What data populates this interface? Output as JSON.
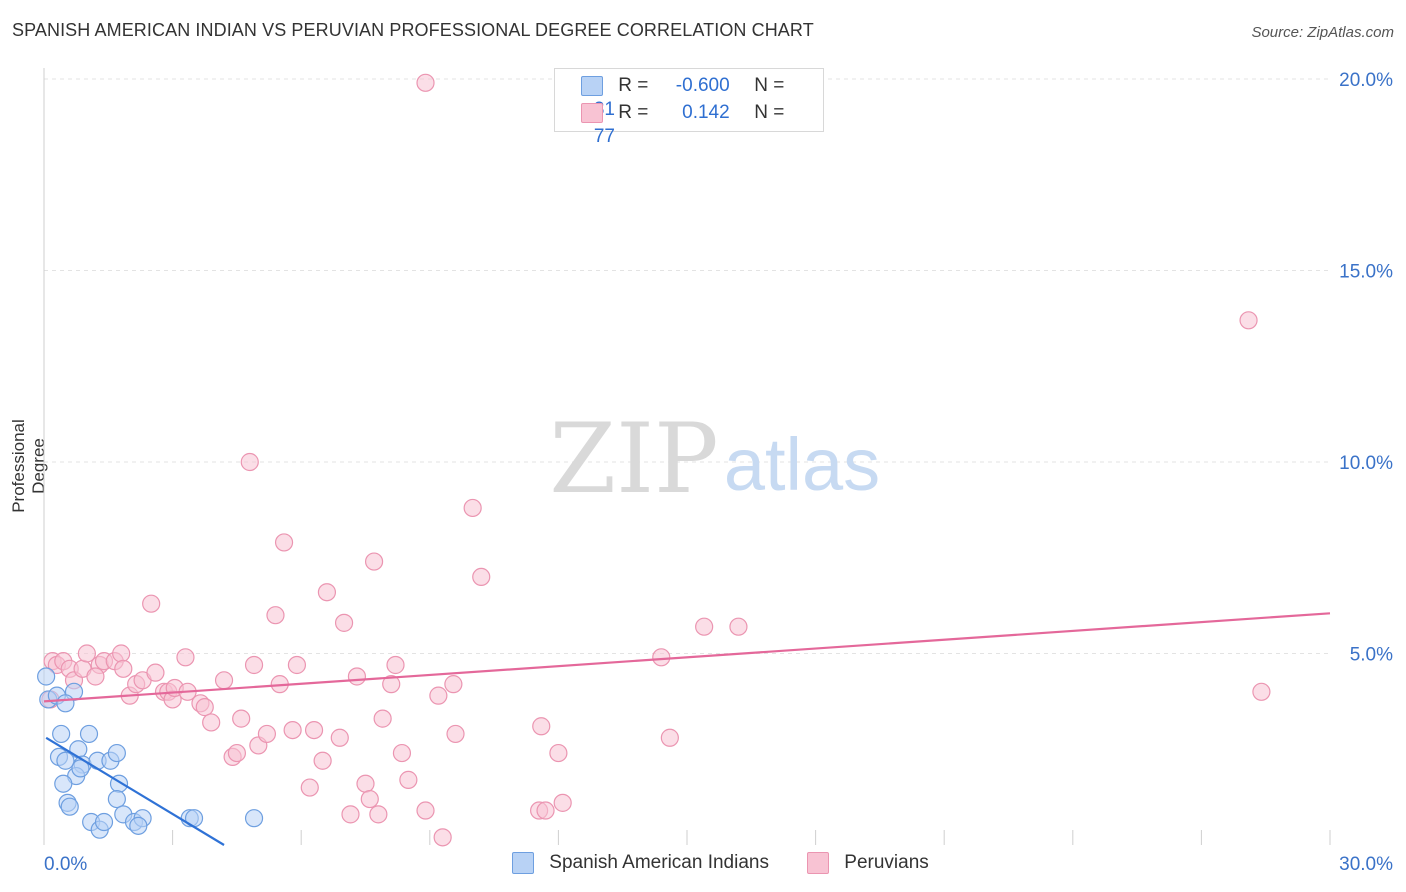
{
  "header": {
    "title": "SPANISH AMERICAN INDIAN VS PERUVIAN PROFESSIONAL DEGREE CORRELATION CHART",
    "source": "Source: ZipAtlas.com"
  },
  "legend": {
    "rows": [
      {
        "r_label": "R =",
        "r_value": "-0.600",
        "n_label": "N =",
        "n_value": "31"
      },
      {
        "r_label": "R =",
        "r_value": "0.142",
        "n_label": "N =",
        "n_value": "77"
      }
    ]
  },
  "watermark": {
    "zip": "ZIP",
    "atlas": "atlas"
  },
  "colors": {
    "blue_fill": "#b8d2f5",
    "blue_stroke": "#6e9fe0",
    "blue_line": "#2f72d6",
    "pink_fill": "#f8c3d3",
    "pink_stroke": "#eb95b1",
    "pink_line": "#e4689a",
    "axis_text": "#3a72c8"
  },
  "chart_data": {
    "type": "scatter",
    "title": "SPANISH AMERICAN INDIAN VS PERUVIAN PROFESSIONAL DEGREE CORRELATION CHART",
    "xlabel": "",
    "ylabel": "Professional Degree",
    "xlim": [
      0,
      30
    ],
    "ylim": [
      0,
      20
    ],
    "x_tick_labels": [
      {
        "value": 0,
        "label": "0.0%"
      },
      {
        "value": 30,
        "label": "30.0%"
      }
    ],
    "y_tick_labels": [
      {
        "value": 5,
        "label": "5.0%"
      },
      {
        "value": 10,
        "label": "10.0%"
      },
      {
        "value": 15,
        "label": "15.0%"
      },
      {
        "value": 20,
        "label": "20.0%"
      }
    ],
    "grid": true,
    "series": [
      {
        "name": "Spanish American Indians",
        "color": "blue",
        "points": [
          [
            0.05,
            4.4
          ],
          [
            0.1,
            3.8
          ],
          [
            0.3,
            3.9
          ],
          [
            0.4,
            2.9
          ],
          [
            0.35,
            2.3
          ],
          [
            0.5,
            2.2
          ],
          [
            0.7,
            4.0
          ],
          [
            0.5,
            3.7
          ],
          [
            0.8,
            2.5
          ],
          [
            1.05,
            2.9
          ],
          [
            0.9,
            2.1
          ],
          [
            0.75,
            1.8
          ],
          [
            0.85,
            2.0
          ],
          [
            1.25,
            2.2
          ],
          [
            1.55,
            2.2
          ],
          [
            1.7,
            2.4
          ],
          [
            0.45,
            1.6
          ],
          [
            0.55,
            1.1
          ],
          [
            0.6,
            1.0
          ],
          [
            1.75,
            1.6
          ],
          [
            1.7,
            1.2
          ],
          [
            1.1,
            0.6
          ],
          [
            1.3,
            0.4
          ],
          [
            1.4,
            0.6
          ],
          [
            1.85,
            0.8
          ],
          [
            2.1,
            0.6
          ],
          [
            2.3,
            0.7
          ],
          [
            2.2,
            0.5
          ],
          [
            3.4,
            0.7
          ],
          [
            3.5,
            0.7
          ],
          [
            4.9,
            0.7
          ]
        ],
        "trend": {
          "x0": 0.05,
          "y0": 2.8,
          "x1": 4.2,
          "y1": 0.0
        }
      },
      {
        "name": "Peruvians",
        "color": "pink",
        "points": [
          [
            0.2,
            4.8
          ],
          [
            0.3,
            4.7
          ],
          [
            0.45,
            4.8
          ],
          [
            0.6,
            4.6
          ],
          [
            0.7,
            4.3
          ],
          [
            0.9,
            4.6
          ],
          [
            1.0,
            5.0
          ],
          [
            1.3,
            4.7
          ],
          [
            1.4,
            4.8
          ],
          [
            1.65,
            4.8
          ],
          [
            1.8,
            5.0
          ],
          [
            1.85,
            4.6
          ],
          [
            2.0,
            3.9
          ],
          [
            2.15,
            4.2
          ],
          [
            2.3,
            4.3
          ],
          [
            2.6,
            4.5
          ],
          [
            2.8,
            4.0
          ],
          [
            2.9,
            4.0
          ],
          [
            3.0,
            3.8
          ],
          [
            3.05,
            4.1
          ],
          [
            3.35,
            4.0
          ],
          [
            3.3,
            4.9
          ],
          [
            3.65,
            3.7
          ],
          [
            3.75,
            3.6
          ],
          [
            3.9,
            3.2
          ],
          [
            4.2,
            4.3
          ],
          [
            4.4,
            2.3
          ],
          [
            4.5,
            2.4
          ],
          [
            4.6,
            3.3
          ],
          [
            4.8,
            10.0
          ],
          [
            4.9,
            4.7
          ],
          [
            5.0,
            2.6
          ],
          [
            5.2,
            2.9
          ],
          [
            5.5,
            4.2
          ],
          [
            5.4,
            6.0
          ],
          [
            5.6,
            7.9
          ],
          [
            5.8,
            3.0
          ],
          [
            5.9,
            4.7
          ],
          [
            6.2,
            1.5
          ],
          [
            6.3,
            3.0
          ],
          [
            6.5,
            2.2
          ],
          [
            6.6,
            6.6
          ],
          [
            6.9,
            2.8
          ],
          [
            7.0,
            5.8
          ],
          [
            7.15,
            0.8
          ],
          [
            7.3,
            4.4
          ],
          [
            7.5,
            1.6
          ],
          [
            7.6,
            1.2
          ],
          [
            7.7,
            7.4
          ],
          [
            7.8,
            0.8
          ],
          [
            7.9,
            3.3
          ],
          [
            8.1,
            4.2
          ],
          [
            8.2,
            4.7
          ],
          [
            8.35,
            2.4
          ],
          [
            8.5,
            1.7
          ],
          [
            8.9,
            0.9
          ],
          [
            9.2,
            3.9
          ],
          [
            9.3,
            0.2
          ],
          [
            9.6,
            2.9
          ],
          [
            9.55,
            4.2
          ],
          [
            10.0,
            8.8
          ],
          [
            10.2,
            7.0
          ],
          [
            11.55,
            0.9
          ],
          [
            11.6,
            3.1
          ],
          [
            11.7,
            0.9
          ],
          [
            12.0,
            2.4
          ],
          [
            12.1,
            1.1
          ],
          [
            14.4,
            4.9
          ],
          [
            14.6,
            2.8
          ],
          [
            15.4,
            5.7
          ],
          [
            16.2,
            5.7
          ],
          [
            8.9,
            19.9
          ],
          [
            28.1,
            13.7
          ],
          [
            28.4,
            4.0
          ],
          [
            0.15,
            3.8
          ],
          [
            1.2,
            4.4
          ],
          [
            2.5,
            6.3
          ]
        ],
        "trend": {
          "x0": 0.0,
          "y0": 3.75,
          "x1": 30.0,
          "y1": 6.05
        }
      }
    ]
  }
}
